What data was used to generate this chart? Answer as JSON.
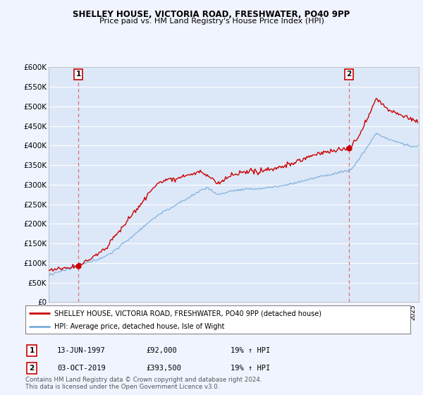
{
  "title1": "SHELLEY HOUSE, VICTORIA ROAD, FRESHWATER, PO40 9PP",
  "title2": "Price paid vs. HM Land Registry's House Price Index (HPI)",
  "legend_line1": "SHELLEY HOUSE, VICTORIA ROAD, FRESHWATER, PO40 9PP (detached house)",
  "legend_line2": "HPI: Average price, detached house, Isle of Wight",
  "footnote1": "Contains HM Land Registry data © Crown copyright and database right 2024.",
  "footnote2": "This data is licensed under the Open Government Licence v3.0.",
  "sale1_label": "1",
  "sale1_date": "13-JUN-1997",
  "sale1_price": "£92,000",
  "sale1_hpi": "19% ↑ HPI",
  "sale2_label": "2",
  "sale2_date": "03-OCT-2019",
  "sale2_price": "£393,500",
  "sale2_hpi": "19% ↑ HPI",
  "ylim": [
    0,
    600000
  ],
  "yticks": [
    0,
    50000,
    100000,
    150000,
    200000,
    250000,
    300000,
    350000,
    400000,
    450000,
    500000,
    550000,
    600000
  ],
  "background_color": "#f0f4ff",
  "plot_bg_color": "#dce8f8",
  "grid_color": "#ffffff",
  "red_line_color": "#cc0000",
  "blue_line_color": "#7aaddb",
  "dashed_color": "#e05050",
  "sale1_year": 1997.45,
  "sale2_year": 2019.75,
  "sale1_value": 92000,
  "sale2_value": 393500,
  "xmin": 1995.0,
  "xmax": 2025.5
}
